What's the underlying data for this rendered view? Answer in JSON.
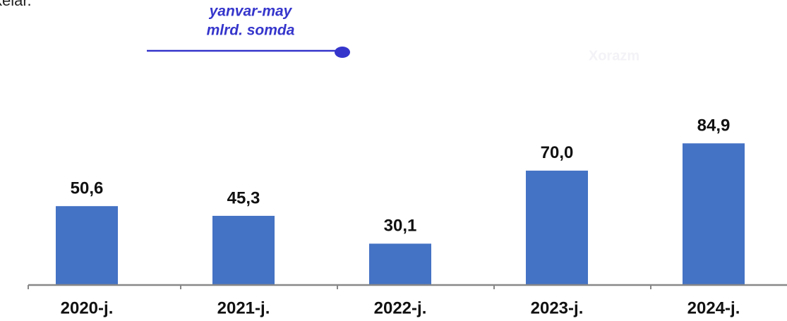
{
  "chart_data": {
    "type": "bar",
    "annotations": [
      "kelar.",
      "Xorazm"
    ],
    "subtitle": [
      "yanvar-may",
      "mlrd. somda"
    ],
    "categories": [
      "2020-j.",
      "2021-j.",
      "2022-j.",
      "2023-j.",
      "2024-j."
    ],
    "values": [
      50.6,
      45.3,
      30.1,
      70.0,
      84.9
    ],
    "value_labels": [
      "50,6",
      "45,3",
      "30,1",
      "70,0",
      "84,9"
    ],
    "color": "#4472c4",
    "ylim": [
      7.5,
      95
    ]
  }
}
